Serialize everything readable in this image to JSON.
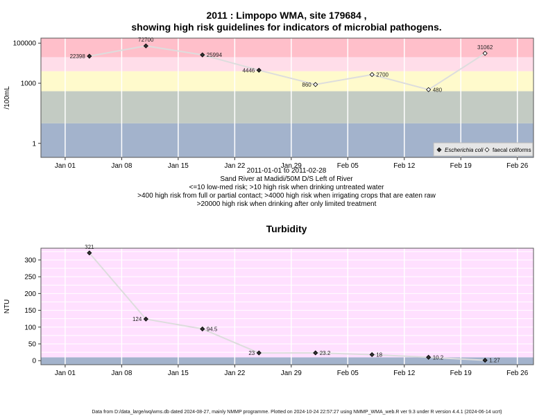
{
  "colors": {
    "band_low": "#a3b3cc",
    "band_mid": "#c3cbc3",
    "band_yellow": "#fffacc",
    "band_pink_light": "#ffdde9",
    "band_red": "#ffbfca",
    "band_magenta": "#ffe0ff",
    "connector": "#dddddd",
    "grid": "#ffffff"
  },
  "chart_data": [
    {
      "type": "scatter",
      "title": "2011 : Limpopo WMA, site 179684 ,",
      "subtitle": "showing high risk guidelines for indicators of microbial pathogens.",
      "ylabel": "/100mL",
      "yscale": "log",
      "ylim_log10": [
        -0.7,
        5.25
      ],
      "x_ticks": [
        "Jan 01",
        "Jan 08",
        "Jan 15",
        "Jan 22",
        "Jan 29",
        "Feb 05",
        "Feb 12",
        "Feb 19",
        "Feb 26"
      ],
      "y_ticks": [
        "1",
        "1000",
        "100000"
      ],
      "y_tick_values": [
        1,
        1000,
        100000
      ],
      "bands": [
        {
          "from": 0.0001,
          "to": 10,
          "color_key": "band_low"
        },
        {
          "from": 10,
          "to": 400,
          "color_key": "band_mid"
        },
        {
          "from": 400,
          "to": 4000,
          "color_key": "band_yellow"
        },
        {
          "from": 4000,
          "to": 20000,
          "color_key": "band_pink_light"
        },
        {
          "from": 20000,
          "to": 1000000,
          "color_key": "band_red"
        }
      ],
      "series": [
        {
          "name": "Escherichia coli",
          "marker": "filled",
          "points": [
            {
              "x": "2011-01-04",
              "y": 22398,
              "label": "22398"
            },
            {
              "x": "2011-01-11",
              "y": 72700,
              "label": "72700"
            },
            {
              "x": "2011-01-18",
              "y": 25994,
              "label": "25994"
            },
            {
              "x": "2011-01-25",
              "y": 4446,
              "label": "4446"
            }
          ]
        },
        {
          "name": "faecal coliforms",
          "marker": "open",
          "points": [
            {
              "x": "2011-02-01",
              "y": 860,
              "label": "860"
            },
            {
              "x": "2011-02-08",
              "y": 2700,
              "label": "2700"
            },
            {
              "x": "2011-02-15",
              "y": 480,
              "label": "480"
            },
            {
              "x": "2011-02-22",
              "y": 31062,
              "label": "31062"
            }
          ]
        }
      ],
      "legend": "bottom-right",
      "notes": [
        "2011-01-01 to 2011-02-28",
        "Sand River at Madidi/50M D/S Left of River",
        "<=10 low-med risk; >10 high risk when drinking untreated water",
        ">400 high risk from full or partial contact; >4000 high risk when irrigating crops that are eaten raw",
        ">20000 high risk when drinking after only limited treatment"
      ]
    },
    {
      "type": "scatter",
      "title": "Turbidity",
      "ylabel": "NTU",
      "ylim": [
        -12,
        335
      ],
      "x_ticks": [
        "Jan 01",
        "Jan 08",
        "Jan 15",
        "Jan 22",
        "Jan 29",
        "Feb 05",
        "Feb 12",
        "Feb 19",
        "Feb 26"
      ],
      "y_ticks": [
        "0",
        "50",
        "100",
        "150",
        "200",
        "250",
        "300"
      ],
      "y_tick_values": [
        0,
        50,
        100,
        150,
        200,
        250,
        300
      ],
      "bands": [
        {
          "from": -100,
          "to": 10,
          "color_key": "band_low"
        },
        {
          "from": 10,
          "to": 1000,
          "color_key": "band_magenta"
        }
      ],
      "series": [
        {
          "marker": "filled",
          "points": [
            {
              "x": "2011-01-04",
              "y": 321,
              "label": "321"
            },
            {
              "x": "2011-01-11",
              "y": 124,
              "label": "124"
            },
            {
              "x": "2011-01-18",
              "y": 94.5,
              "label": "94.5"
            },
            {
              "x": "2011-01-25",
              "y": 23,
              "label": "23"
            },
            {
              "x": "2011-02-01",
              "y": 23.2,
              "label": "23.2"
            },
            {
              "x": "2011-02-08",
              "y": 18,
              "label": "18"
            },
            {
              "x": "2011-02-15",
              "y": 10.2,
              "label": "10.2"
            },
            {
              "x": "2011-02-22",
              "y": 1.27,
              "label": "1.27"
            }
          ]
        }
      ]
    }
  ],
  "footer": "Data from D:/data_large/wq/wms.db dated 2024-08-27, mainly NMMP programme. Plotted on 2024-10-24 22:57:27 using NMMP_WMA_web.R ver 9.3 under R version 4.4.1 (2024-06-14 ucrt)"
}
